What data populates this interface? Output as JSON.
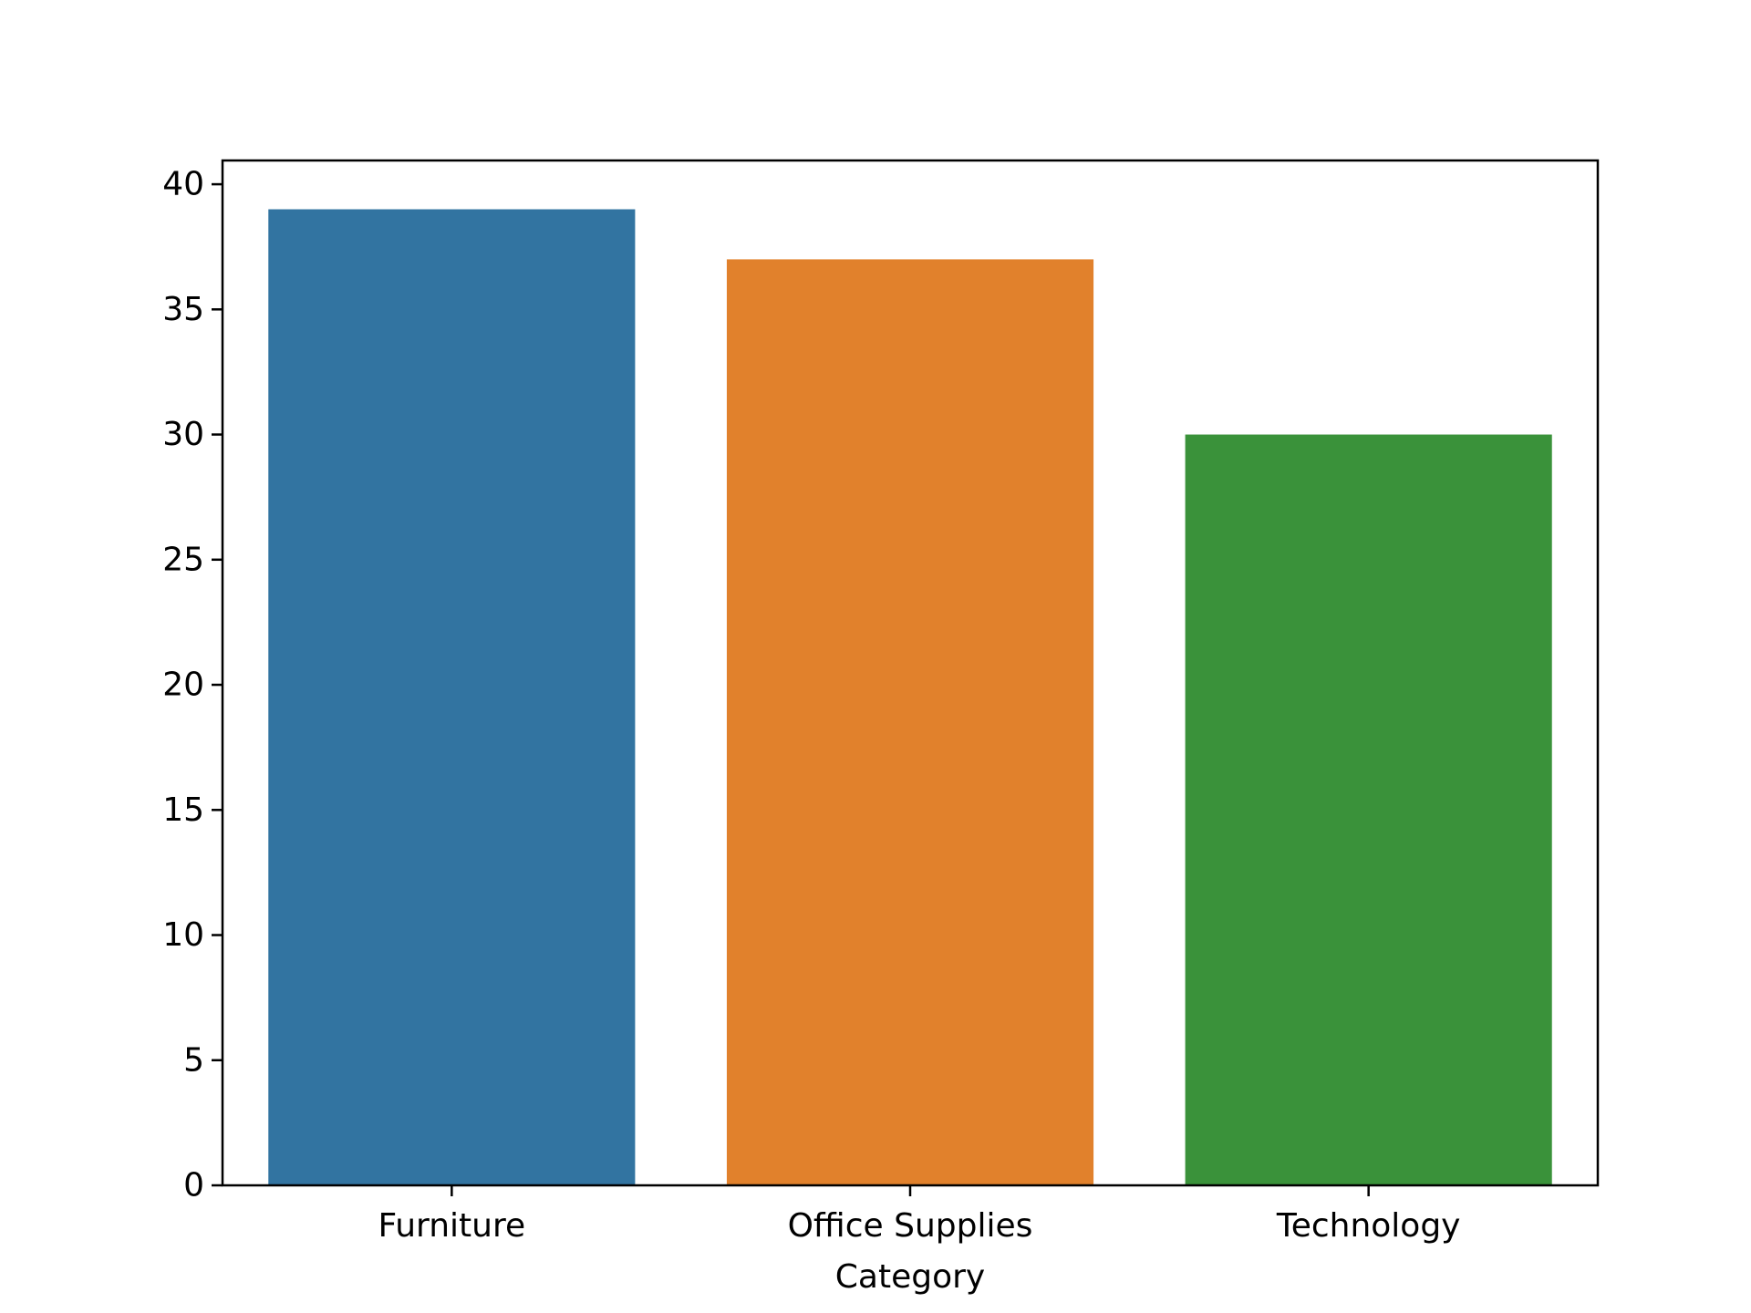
{
  "chart_data": {
    "type": "bar",
    "categories": [
      "Furniture",
      "Office Supplies",
      "Technology"
    ],
    "values": [
      39,
      37,
      30
    ],
    "colors": [
      "#3274a1",
      "#e1812c",
      "#3a923a"
    ],
    "title": "",
    "xlabel": "Category",
    "ylabel": "",
    "ylim": [
      0,
      40.95
    ],
    "yticks": [
      0,
      5,
      10,
      15,
      20,
      25,
      30,
      35,
      40
    ],
    "grid": false,
    "legend": "none"
  }
}
